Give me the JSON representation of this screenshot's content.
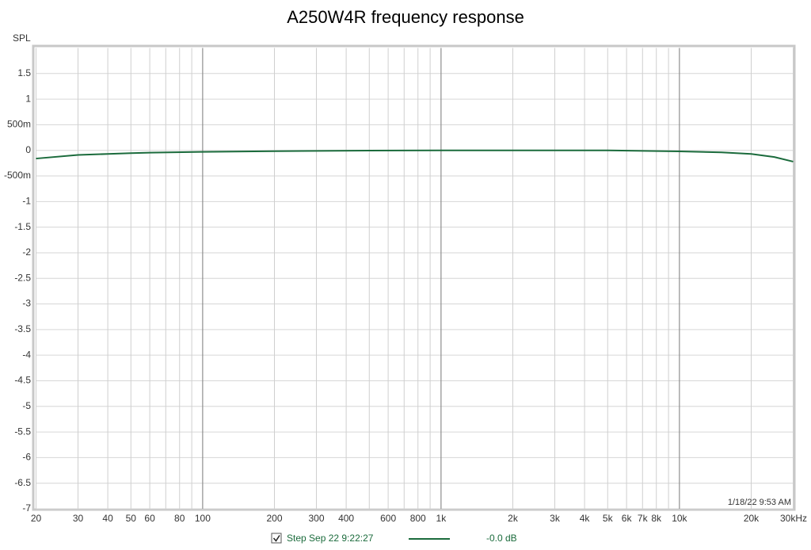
{
  "chart_data": {
    "type": "line",
    "title": "A250W4R frequency response",
    "y_label": "SPL",
    "timestamp": "1/18/22 9:53 AM",
    "x_log": true,
    "xlim": [
      20,
      30000
    ],
    "ylim": [
      -7,
      2
    ],
    "xticks": [
      20,
      30,
      40,
      50,
      60,
      80,
      100,
      200,
      300,
      400,
      600,
      800,
      {
        "value": 1000,
        "label": "1k"
      },
      {
        "value": 2000,
        "label": "2k"
      },
      {
        "value": 3000,
        "label": "3k"
      },
      {
        "value": 4000,
        "label": "4k"
      },
      {
        "value": 5000,
        "label": "5k"
      },
      {
        "value": 6000,
        "label": "6k"
      },
      {
        "value": 7000,
        "label": "7k"
      },
      {
        "value": 8000,
        "label": "8k"
      },
      {
        "value": 10000,
        "label": "10k"
      },
      {
        "value": 20000,
        "label": "20k"
      },
      {
        "value": 30000,
        "label": "30kHz"
      }
    ],
    "x_minor_grid": [
      70,
      90,
      500,
      700,
      900,
      9000
    ],
    "x_major_grid": [
      100,
      1000,
      10000
    ],
    "yticks": [
      1.5,
      1,
      {
        "value": 0.5,
        "label": "500m"
      },
      0,
      {
        "value": -0.5,
        "label": "-500m"
      },
      -1,
      -1.5,
      -2,
      -2.5,
      -3,
      -3.5,
      -4,
      -4.5,
      -5,
      -5.5,
      -6,
      -6.5,
      -7
    ],
    "grid": true,
    "x": [
      20,
      30,
      40,
      50,
      60,
      100,
      200,
      500,
      1000,
      2000,
      5000,
      10000,
      15000,
      20000,
      25000,
      30000
    ],
    "series": [
      {
        "name": "Step Sep 22 9:22:27",
        "color": "#1b6b3c",
        "legend_value": "-0.0 dB",
        "values": [
          -0.16,
          -0.09,
          -0.07,
          -0.055,
          -0.045,
          -0.03,
          -0.015,
          -0.005,
          0,
          0,
          0,
          -0.02,
          -0.04,
          -0.07,
          -0.13,
          -0.22
        ]
      }
    ]
  }
}
